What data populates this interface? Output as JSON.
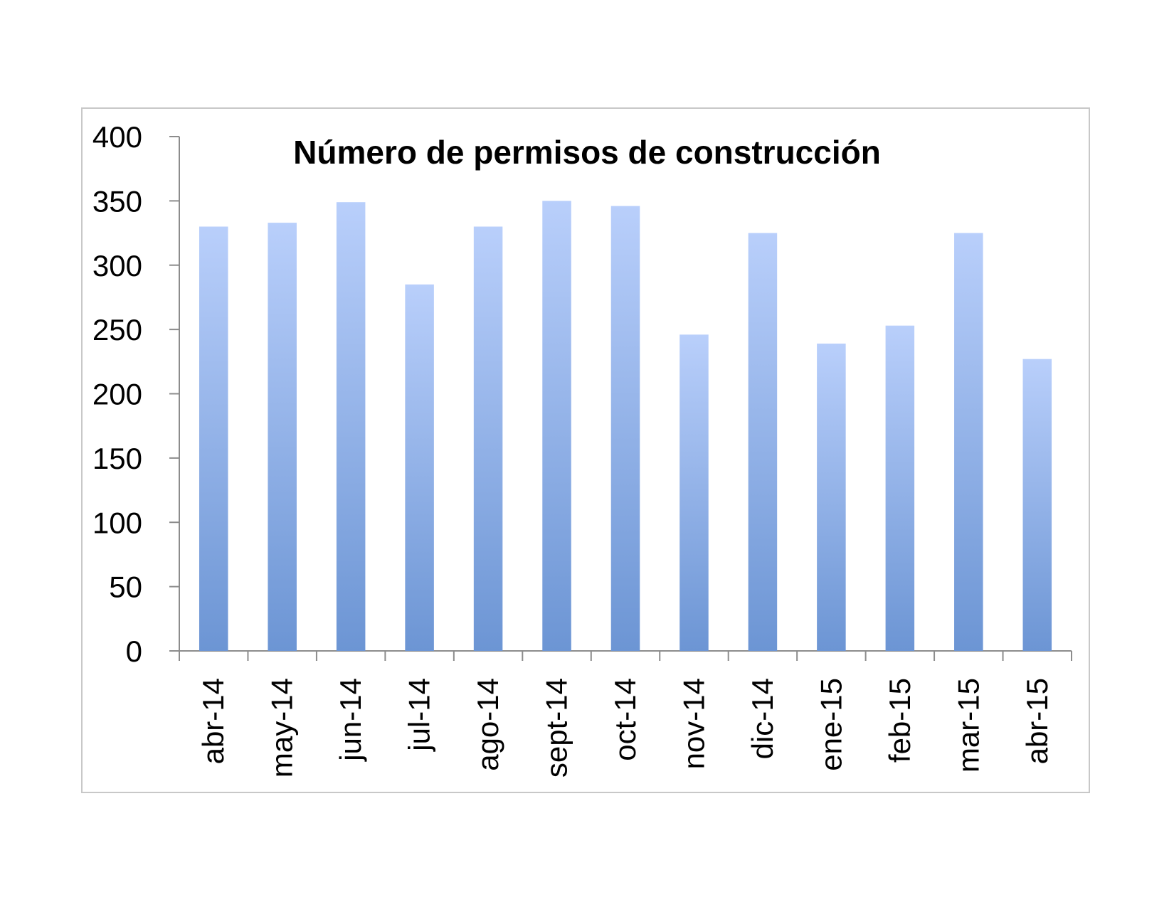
{
  "chart_data": {
    "type": "bar",
    "title": "Número de permisos de construcción",
    "xlabel": "",
    "ylabel": "",
    "categories": [
      "abr-14",
      "may-14",
      "jun-14",
      "jul-14",
      "ago-14",
      "sept-14",
      "oct-14",
      "nov-14",
      "dic-14",
      "ene-15",
      "feb-15",
      "mar-15",
      "abr-15"
    ],
    "values": [
      330,
      333,
      349,
      285,
      330,
      350,
      346,
      246,
      325,
      239,
      253,
      325,
      227
    ],
    "ylim": [
      0,
      400
    ],
    "yticks": [
      "0",
      "50",
      "100",
      "150",
      "200",
      "250",
      "300",
      "350",
      "400"
    ],
    "grid": false,
    "legend": "none",
    "colors": {
      "bar_top": "#b9cffb",
      "bar_bottom": "#6c95d4",
      "axis": "#8c8c8c"
    }
  }
}
